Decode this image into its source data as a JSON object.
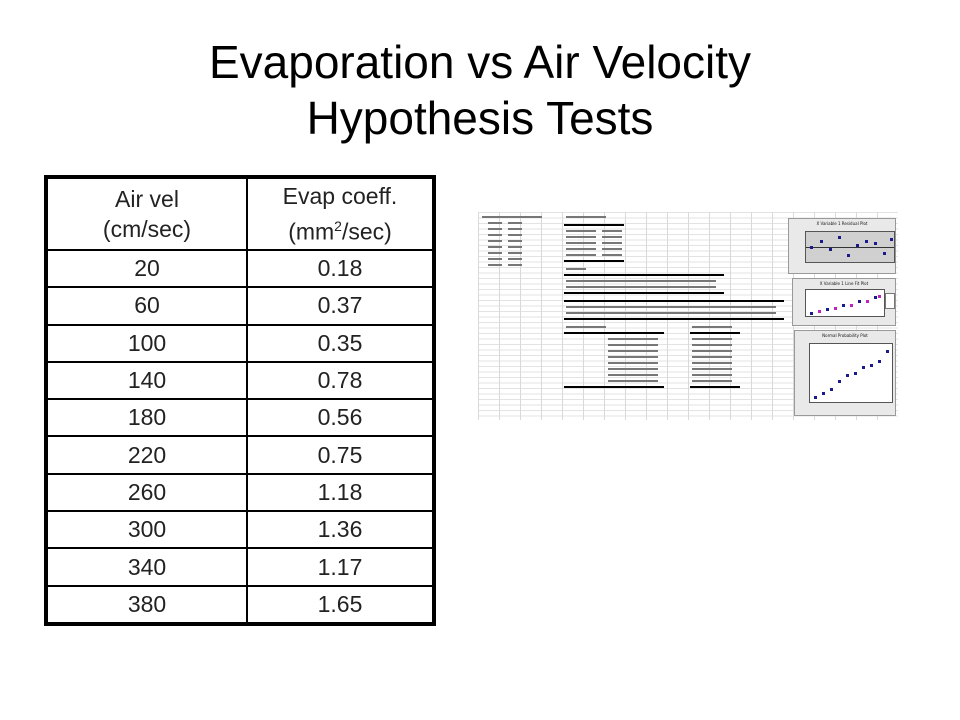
{
  "slide": {
    "title_line1": "Evaporation vs Air Velocity",
    "title_line2": "Hypothesis Tests"
  },
  "table": {
    "header_col1_line1": "Air vel",
    "header_col1_line2": "(cm/sec)",
    "header_col2_line1": "Evap coeff.",
    "header_col2_line2_pre": "(mm",
    "header_col2_line2_sup": "2",
    "header_col2_line2_post": "/sec)",
    "rows": [
      {
        "air_vel": "20",
        "evap": "0.18"
      },
      {
        "air_vel": "60",
        "evap": "0.37"
      },
      {
        "air_vel": "100",
        "evap": "0.35"
      },
      {
        "air_vel": "140",
        "evap": "0.78"
      },
      {
        "air_vel": "180",
        "evap": "0.56"
      },
      {
        "air_vel": "220",
        "evap": "0.75"
      },
      {
        "air_vel": "260",
        "evap": "1.18"
      },
      {
        "air_vel": "300",
        "evap": "1.36"
      },
      {
        "air_vel": "340",
        "evap": "1.17"
      },
      {
        "air_vel": "380",
        "evap": "1.65"
      }
    ]
  },
  "spreadsheet_thumbnail": {
    "chart1_title": "X Variable 1 Residual Plot",
    "chart2_title": "X Variable 1 Line Fit Plot",
    "chart3_title": "Normal Probability Plot"
  }
}
